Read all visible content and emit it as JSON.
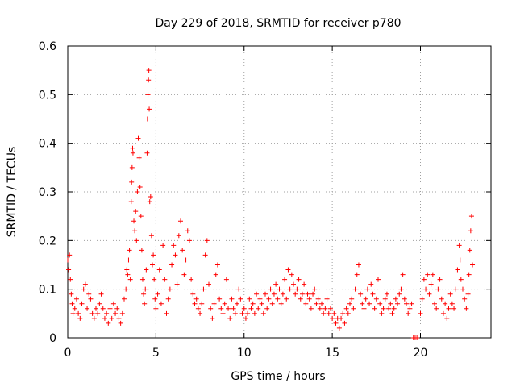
{
  "chart_data": {
    "type": "scatter",
    "title": "Day 229 of 2018, SRMTID for receiver p780",
    "xlabel": "GPS time / hours",
    "ylabel": "SRMTID / TECUs",
    "xlim": [
      0,
      24
    ],
    "ylim": [
      0,
      0.6
    ],
    "xticks": [
      0,
      5,
      10,
      15,
      20
    ],
    "xtick_labels": [
      "0",
      "5",
      "10",
      "15",
      "20"
    ],
    "yticks": [
      0,
      0.1,
      0.2,
      0.3,
      0.4,
      0.5,
      0.6
    ],
    "ytick_labels": [
      "0",
      "0.1",
      "0.2",
      "0.3",
      "0.4",
      "0.5",
      "0.6"
    ],
    "grid": true,
    "marker": "plus",
    "color": "#ff0000",
    "series": [
      {
        "name": "SRMTID",
        "points": [
          [
            0.0,
            0.16
          ],
          [
            0.05,
            0.14
          ],
          [
            0.1,
            0.17
          ],
          [
            0.15,
            0.12
          ],
          [
            0.2,
            0.09
          ],
          [
            0.25,
            0.07
          ],
          [
            0.3,
            0.05
          ],
          [
            0.4,
            0.06
          ],
          [
            0.5,
            0.08
          ],
          [
            0.6,
            0.05
          ],
          [
            0.7,
            0.04
          ],
          [
            0.8,
            0.07
          ],
          [
            0.9,
            0.1
          ],
          [
            1.0,
            0.11
          ],
          [
            1.1,
            0.06
          ],
          [
            1.2,
            0.09
          ],
          [
            1.3,
            0.08
          ],
          [
            1.4,
            0.05
          ],
          [
            1.5,
            0.04
          ],
          [
            1.6,
            0.06
          ],
          [
            1.7,
            0.05
          ],
          [
            1.8,
            0.07
          ],
          [
            1.9,
            0.09
          ],
          [
            2.0,
            0.06
          ],
          [
            2.1,
            0.04
          ],
          [
            2.2,
            0.05
          ],
          [
            2.3,
            0.03
          ],
          [
            2.4,
            0.06
          ],
          [
            2.5,
            0.04
          ],
          [
            2.6,
            0.07
          ],
          [
            2.7,
            0.05
          ],
          [
            2.8,
            0.06
          ],
          [
            2.9,
            0.04
          ],
          [
            3.0,
            0.03
          ],
          [
            3.1,
            0.05
          ],
          [
            3.2,
            0.08
          ],
          [
            3.3,
            0.1
          ],
          [
            3.35,
            0.14
          ],
          [
            3.4,
            0.13
          ],
          [
            3.45,
            0.16
          ],
          [
            3.5,
            0.18
          ],
          [
            3.55,
            0.12
          ],
          [
            3.6,
            0.28
          ],
          [
            3.62,
            0.32
          ],
          [
            3.65,
            0.35
          ],
          [
            3.68,
            0.39
          ],
          [
            3.7,
            0.38
          ],
          [
            3.75,
            0.24
          ],
          [
            3.8,
            0.22
          ],
          [
            3.85,
            0.26
          ],
          [
            3.9,
            0.2
          ],
          [
            3.95,
            0.3
          ],
          [
            4.0,
            0.41
          ],
          [
            4.05,
            0.37
          ],
          [
            4.1,
            0.31
          ],
          [
            4.15,
            0.25
          ],
          [
            4.2,
            0.18
          ],
          [
            4.25,
            0.12
          ],
          [
            4.3,
            0.09
          ],
          [
            4.35,
            0.07
          ],
          [
            4.4,
            0.1
          ],
          [
            4.45,
            0.14
          ],
          [
            4.5,
            0.38
          ],
          [
            4.52,
            0.45
          ],
          [
            4.55,
            0.5
          ],
          [
            4.58,
            0.53
          ],
          [
            4.6,
            0.55
          ],
          [
            4.62,
            0.47
          ],
          [
            4.65,
            0.28
          ],
          [
            4.7,
            0.29
          ],
          [
            4.75,
            0.21
          ],
          [
            4.8,
            0.15
          ],
          [
            4.85,
            0.17
          ],
          [
            4.9,
            0.12
          ],
          [
            4.95,
            0.08
          ],
          [
            5.0,
            0.06
          ],
          [
            5.1,
            0.09
          ],
          [
            5.2,
            0.14
          ],
          [
            5.3,
            0.07
          ],
          [
            5.4,
            0.19
          ],
          [
            5.5,
            0.12
          ],
          [
            5.6,
            0.05
          ],
          [
            5.7,
            0.08
          ],
          [
            5.8,
            0.1
          ],
          [
            5.9,
            0.15
          ],
          [
            6.0,
            0.19
          ],
          [
            6.1,
            0.17
          ],
          [
            6.2,
            0.11
          ],
          [
            6.3,
            0.21
          ],
          [
            6.4,
            0.24
          ],
          [
            6.5,
            0.18
          ],
          [
            6.6,
            0.13
          ],
          [
            6.7,
            0.16
          ],
          [
            6.8,
            0.22
          ],
          [
            6.9,
            0.2
          ],
          [
            7.0,
            0.12
          ],
          [
            7.1,
            0.09
          ],
          [
            7.2,
            0.07
          ],
          [
            7.3,
            0.08
          ],
          [
            7.4,
            0.06
          ],
          [
            7.5,
            0.05
          ],
          [
            7.6,
            0.07
          ],
          [
            7.7,
            0.1
          ],
          [
            7.8,
            0.17
          ],
          [
            7.9,
            0.2
          ],
          [
            8.0,
            0.11
          ],
          [
            8.1,
            0.06
          ],
          [
            8.2,
            0.04
          ],
          [
            8.3,
            0.07
          ],
          [
            8.4,
            0.13
          ],
          [
            8.5,
            0.15
          ],
          [
            8.6,
            0.08
          ],
          [
            8.7,
            0.06
          ],
          [
            8.8,
            0.05
          ],
          [
            8.9,
            0.07
          ],
          [
            9.0,
            0.12
          ],
          [
            9.1,
            0.06
          ],
          [
            9.2,
            0.04
          ],
          [
            9.3,
            0.08
          ],
          [
            9.4,
            0.06
          ],
          [
            9.5,
            0.05
          ],
          [
            9.6,
            0.07
          ],
          [
            9.7,
            0.1
          ],
          [
            9.8,
            0.08
          ],
          [
            9.9,
            0.05
          ],
          [
            10.0,
            0.06
          ],
          [
            10.1,
            0.04
          ],
          [
            10.2,
            0.05
          ],
          [
            10.3,
            0.08
          ],
          [
            10.4,
            0.06
          ],
          [
            10.5,
            0.07
          ],
          [
            10.6,
            0.05
          ],
          [
            10.7,
            0.09
          ],
          [
            10.8,
            0.06
          ],
          [
            10.9,
            0.08
          ],
          [
            11.0,
            0.07
          ],
          [
            11.1,
            0.05
          ],
          [
            11.2,
            0.09
          ],
          [
            11.3,
            0.06
          ],
          [
            11.4,
            0.08
          ],
          [
            11.5,
            0.1
          ],
          [
            11.6,
            0.07
          ],
          [
            11.7,
            0.09
          ],
          [
            11.8,
            0.11
          ],
          [
            11.9,
            0.08
          ],
          [
            12.0,
            0.1
          ],
          [
            12.1,
            0.07
          ],
          [
            12.2,
            0.09
          ],
          [
            12.3,
            0.12
          ],
          [
            12.4,
            0.08
          ],
          [
            12.5,
            0.14
          ],
          [
            12.6,
            0.1
          ],
          [
            12.7,
            0.13
          ],
          [
            12.8,
            0.11
          ],
          [
            12.9,
            0.09
          ],
          [
            13.0,
            0.1
          ],
          [
            13.1,
            0.12
          ],
          [
            13.2,
            0.08
          ],
          [
            13.3,
            0.09
          ],
          [
            13.4,
            0.11
          ],
          [
            13.5,
            0.07
          ],
          [
            13.6,
            0.09
          ],
          [
            13.7,
            0.08
          ],
          [
            13.8,
            0.06
          ],
          [
            13.9,
            0.09
          ],
          [
            14.0,
            0.1
          ],
          [
            14.1,
            0.07
          ],
          [
            14.2,
            0.08
          ],
          [
            14.3,
            0.06
          ],
          [
            14.4,
            0.07
          ],
          [
            14.5,
            0.05
          ],
          [
            14.6,
            0.06
          ],
          [
            14.7,
            0.08
          ],
          [
            14.8,
            0.05
          ],
          [
            14.9,
            0.06
          ],
          [
            15.0,
            0.04
          ],
          [
            15.1,
            0.05
          ],
          [
            15.2,
            0.03
          ],
          [
            15.3,
            0.04
          ],
          [
            15.4,
            0.02
          ],
          [
            15.5,
            0.04
          ],
          [
            15.6,
            0.05
          ],
          [
            15.7,
            0.03
          ],
          [
            15.8,
            0.06
          ],
          [
            15.9,
            0.05
          ],
          [
            16.0,
            0.07
          ],
          [
            16.1,
            0.08
          ],
          [
            16.2,
            0.06
          ],
          [
            16.3,
            0.1
          ],
          [
            16.4,
            0.13
          ],
          [
            16.5,
            0.15
          ],
          [
            16.6,
            0.09
          ],
          [
            16.7,
            0.07
          ],
          [
            16.8,
            0.06
          ],
          [
            16.9,
            0.08
          ],
          [
            17.0,
            0.1
          ],
          [
            17.1,
            0.07
          ],
          [
            17.2,
            0.11
          ],
          [
            17.3,
            0.09
          ],
          [
            17.4,
            0.06
          ],
          [
            17.5,
            0.08
          ],
          [
            17.6,
            0.12
          ],
          [
            17.7,
            0.07
          ],
          [
            17.8,
            0.05
          ],
          [
            17.9,
            0.06
          ],
          [
            18.0,
            0.08
          ],
          [
            18.1,
            0.09
          ],
          [
            18.2,
            0.06
          ],
          [
            18.3,
            0.07
          ],
          [
            18.4,
            0.05
          ],
          [
            18.5,
            0.06
          ],
          [
            18.6,
            0.08
          ],
          [
            18.7,
            0.07
          ],
          [
            18.8,
            0.09
          ],
          [
            18.9,
            0.1
          ],
          [
            19.0,
            0.13
          ],
          [
            19.1,
            0.08
          ],
          [
            19.2,
            0.07
          ],
          [
            19.3,
            0.05
          ],
          [
            19.4,
            0.06
          ],
          [
            19.5,
            0.07
          ],
          [
            19.6,
            0.0
          ],
          [
            19.7,
            0.0
          ],
          [
            19.8,
            0.0
          ],
          [
            20.0,
            0.05
          ],
          [
            20.1,
            0.08
          ],
          [
            20.2,
            0.12
          ],
          [
            20.3,
            0.1
          ],
          [
            20.4,
            0.13
          ],
          [
            20.5,
            0.09
          ],
          [
            20.6,
            0.11
          ],
          [
            20.7,
            0.13
          ],
          [
            20.8,
            0.07
          ],
          [
            20.9,
            0.06
          ],
          [
            21.0,
            0.1
          ],
          [
            21.1,
            0.12
          ],
          [
            21.2,
            0.08
          ],
          [
            21.3,
            0.05
          ],
          [
            21.4,
            0.07
          ],
          [
            21.5,
            0.04
          ],
          [
            21.6,
            0.06
          ],
          [
            21.7,
            0.09
          ],
          [
            21.8,
            0.07
          ],
          [
            21.9,
            0.06
          ],
          [
            22.0,
            0.1
          ],
          [
            22.1,
            0.14
          ],
          [
            22.2,
            0.19
          ],
          [
            22.25,
            0.16
          ],
          [
            22.3,
            0.12
          ],
          [
            22.4,
            0.1
          ],
          [
            22.5,
            0.08
          ],
          [
            22.6,
            0.06
          ],
          [
            22.7,
            0.09
          ],
          [
            22.75,
            0.13
          ],
          [
            22.8,
            0.18
          ],
          [
            22.85,
            0.22
          ],
          [
            22.9,
            0.25
          ],
          [
            22.95,
            0.15
          ]
        ]
      }
    ]
  }
}
